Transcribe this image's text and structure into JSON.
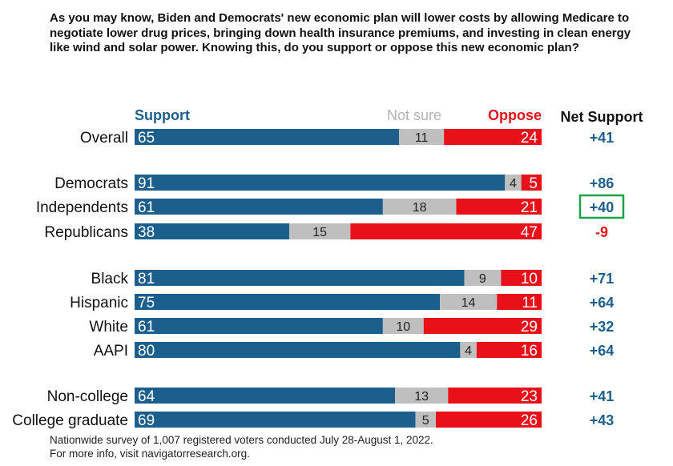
{
  "question": "As you may know, Biden and Democrats' new economic plan will lower costs by allowing Medicare to negotiate lower drug prices, bringing down health insurance premiums, and investing in clean energy like wind and solar power. Knowing this, do you support or oppose this new economic plan?",
  "footnote": {
    "line1": "Nationwide survey of 1,007 registered voters conducted July 28-August 1, 2022.",
    "line2": "For more info, visit navigatorresearch.org."
  },
  "colors": {
    "support": "#1d5f8c",
    "not_sure": "#bfbfbf",
    "oppose": "#e8111a",
    "net_positive": "#1d5f8c",
    "net_negative": "#e8111a",
    "highlight_box": "#1aa34a",
    "header_not_sure": "#b3b3b3",
    "label": "#111111"
  },
  "chart_data": {
    "type": "bar",
    "orientation": "horizontal",
    "stacked": true,
    "xlim": [
      0,
      100
    ],
    "legend_headers": {
      "support": "Support",
      "not_sure": "Not sure",
      "oppose": "Oppose",
      "net": "Net Support"
    },
    "categories": [
      "Overall",
      "Democrats",
      "Independents",
      "Republicans",
      "Black",
      "Hispanic",
      "White",
      "AAPI",
      "Non-college",
      "College graduate"
    ],
    "groups": [
      [
        "Overall"
      ],
      [
        "Democrats",
        "Independents",
        "Republicans"
      ],
      [
        "Black",
        "Hispanic",
        "White",
        "AAPI"
      ],
      [
        "Non-college",
        "College graduate"
      ]
    ],
    "series": [
      {
        "name": "Support",
        "values": [
          65,
          91,
          61,
          38,
          81,
          75,
          61,
          80,
          64,
          69
        ]
      },
      {
        "name": "Not sure",
        "values": [
          11,
          4,
          18,
          15,
          9,
          14,
          10,
          4,
          13,
          5
        ]
      },
      {
        "name": "Oppose",
        "values": [
          24,
          5,
          21,
          47,
          10,
          11,
          29,
          16,
          23,
          26
        ]
      }
    ],
    "net_support": [
      "+41",
      "+86",
      "+40",
      "-9",
      "+71",
      "+64",
      "+32",
      "+64",
      "+41",
      "+43"
    ],
    "highlighted_net": "Independents"
  }
}
